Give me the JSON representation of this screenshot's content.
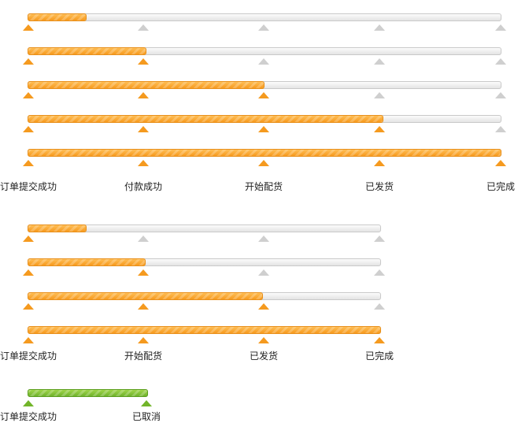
{
  "colors": {
    "active": "#f59a1f",
    "inactive": "#cfcfcf",
    "cancelled": "#72b52a"
  },
  "flow_full": {
    "steps": [
      "订单提交成功",
      "付款成功",
      "开始配货",
      "已发货",
      "已完成"
    ],
    "rows": [
      {
        "progress": 0.125,
        "active_steps": 1
      },
      {
        "progress": 0.25,
        "active_steps": 2
      },
      {
        "progress": 0.5,
        "active_steps": 3
      },
      {
        "progress": 0.75,
        "active_steps": 4
      },
      {
        "progress": 1.0,
        "active_steps": 5
      }
    ]
  },
  "flow_short": {
    "steps": [
      "订单提交成功",
      "开始配货",
      "已发货",
      "已完成"
    ],
    "rows": [
      {
        "progress": 0.167,
        "active_steps": 1
      },
      {
        "progress": 0.333,
        "active_steps": 2
      },
      {
        "progress": 0.667,
        "active_steps": 3
      },
      {
        "progress": 1.0,
        "active_steps": 4
      }
    ]
  },
  "flow_cancel": {
    "steps": [
      "订单提交成功",
      "已取消"
    ],
    "rows": [
      {
        "progress": 1.0,
        "active_steps": 2
      }
    ]
  }
}
